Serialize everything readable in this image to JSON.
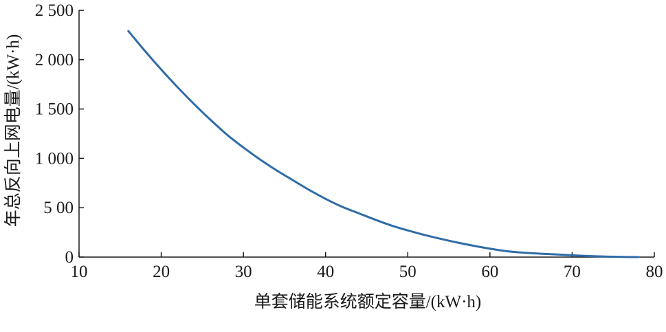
{
  "chart_data": {
    "type": "line",
    "title": "",
    "xlabel": "单套储能系统额定容量/(kW·h)",
    "ylabel": "年总反向上网电量/(kW·h)",
    "xlim": [
      10,
      80
    ],
    "ylim": [
      0,
      2500
    ],
    "x_ticks": [
      10,
      20,
      30,
      40,
      50,
      60,
      70,
      80
    ],
    "y_ticks": [
      0,
      500,
      1000,
      1500,
      2000,
      2500
    ],
    "x_tick_labels": [
      "10",
      "20",
      "30",
      "40",
      "50",
      "60",
      "70",
      "80"
    ],
    "y_tick_labels": [
      "0",
      "5 00",
      "1 000",
      "1 500",
      "2 000",
      "2 500"
    ],
    "grid": false,
    "series": [
      {
        "color": "#2f6ca8",
        "x": [
          16,
          18,
          20,
          22,
          24,
          26,
          28,
          30,
          32,
          34,
          36,
          38,
          40,
          42,
          44,
          46,
          48,
          50,
          52,
          54,
          56,
          58,
          60,
          62,
          64,
          66,
          68,
          70,
          72,
          74,
          76,
          78
        ],
        "y": [
          2290,
          2090,
          1900,
          1720,
          1550,
          1390,
          1240,
          1110,
          990,
          880,
          780,
          680,
          590,
          510,
          445,
          380,
          320,
          270,
          225,
          185,
          148,
          115,
          85,
          60,
          45,
          35,
          27,
          18,
          10,
          5,
          2,
          0
        ]
      }
    ]
  }
}
